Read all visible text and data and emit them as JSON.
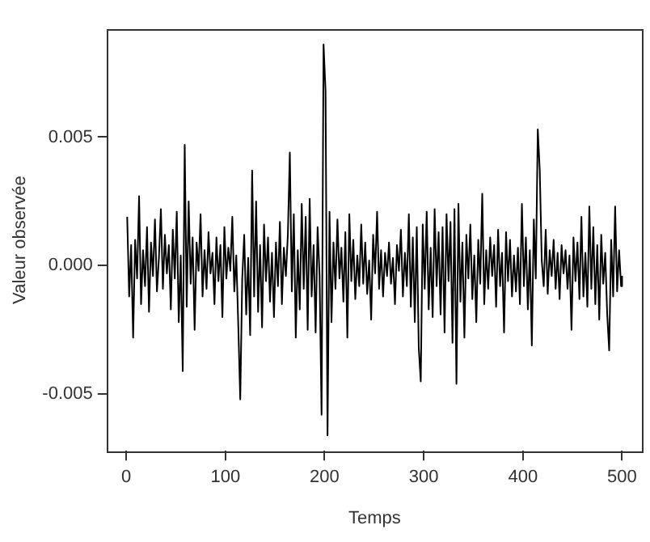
{
  "chart_data": {
    "type": "line",
    "xlabel": "Temps",
    "ylabel": "Valeur observée",
    "xlim": [
      -19,
      520
    ],
    "xticks": [
      0,
      100,
      200,
      300,
      400,
      500
    ],
    "ylim": [
      -0.0072,
      0.0092
    ],
    "yticks": [
      {
        "value": -0.005,
        "label": "-0.005"
      },
      {
        "value": 0,
        "label": "0.000"
      },
      {
        "value": 0.005,
        "label": "0.005"
      }
    ],
    "grid": false,
    "legend": false,
    "marker": "none",
    "line_style": "solid",
    "series": [
      {
        "color": "#000000",
        "x": [
          1,
          3,
          5,
          7,
          9,
          11,
          13,
          15,
          17,
          19,
          21,
          23,
          25,
          27,
          29,
          31,
          33,
          35,
          37,
          39,
          41,
          43,
          45,
          47,
          49,
          51,
          53,
          55,
          57,
          59,
          61,
          63,
          65,
          67,
          69,
          71,
          73,
          75,
          77,
          79,
          81,
          83,
          85,
          87,
          89,
          91,
          93,
          95,
          97,
          99,
          101,
          103,
          105,
          107,
          109,
          111,
          113,
          115,
          117,
          119,
          121,
          123,
          125,
          127,
          129,
          131,
          133,
          135,
          137,
          139,
          141,
          143,
          145,
          147,
          149,
          151,
          153,
          155,
          157,
          159,
          161,
          163,
          165,
          167,
          169,
          171,
          173,
          175,
          177,
          179,
          181,
          183,
          185,
          187,
          189,
          191,
          193,
          195,
          197,
          199,
          201,
          203,
          205,
          207,
          209,
          211,
          213,
          215,
          217,
          219,
          221,
          223,
          225,
          227,
          229,
          231,
          233,
          235,
          237,
          239,
          241,
          243,
          245,
          247,
          249,
          251,
          253,
          255,
          257,
          259,
          261,
          263,
          265,
          267,
          269,
          271,
          273,
          275,
          277,
          279,
          281,
          283,
          285,
          287,
          289,
          291,
          293,
          295,
          297,
          299,
          301,
          303,
          305,
          307,
          309,
          311,
          313,
          315,
          317,
          319,
          321,
          323,
          325,
          327,
          329,
          331,
          333,
          335,
          337,
          339,
          341,
          343,
          345,
          347,
          349,
          351,
          353,
          355,
          357,
          359,
          361,
          363,
          365,
          367,
          369,
          371,
          373,
          375,
          377,
          379,
          381,
          383,
          385,
          387,
          389,
          391,
          393,
          395,
          397,
          399,
          401,
          403,
          405,
          407,
          409,
          411,
          413,
          415,
          417,
          419,
          421,
          423,
          425,
          427,
          429,
          431,
          433,
          435,
          437,
          439,
          441,
          443,
          445,
          447,
          449,
          451,
          453,
          455,
          457,
          459,
          461,
          463,
          465,
          467,
          469,
          471,
          473,
          475,
          477,
          479,
          481,
          483,
          485,
          487,
          489,
          491,
          493,
          495,
          497,
          499,
          500
        ],
        "values": [
          0.0019,
          -0.0012,
          0.0008,
          -0.0028,
          0.001,
          -0.0005,
          0.0027,
          -0.0015,
          0.0006,
          -0.0008,
          0.0015,
          -0.0018,
          0.0009,
          -0.0004,
          0.0018,
          -0.001,
          0.0003,
          0.0022,
          -0.0009,
          0.0012,
          -0.0003,
          0.0008,
          -0.0017,
          0.0014,
          -0.0005,
          0.0021,
          -0.0022,
          0.0004,
          -0.0041,
          0.0047,
          -0.0016,
          0.0025,
          -0.0007,
          0.0011,
          -0.0025,
          0.0009,
          -0.0002,
          0.002,
          -0.0012,
          0.0006,
          -0.0009,
          0.0013,
          -0.0003,
          0.0005,
          -0.0015,
          0.0011,
          -0.0006,
          0.0008,
          -0.002,
          0.0015,
          -0.0005,
          0.0007,
          -0.0002,
          0.0019,
          -0.001,
          0.0004,
          -0.0023,
          -0.0052,
          -0.0005,
          0.0012,
          -0.0019,
          0.0003,
          -0.0027,
          0.0037,
          -0.0012,
          0.0025,
          -0.0018,
          0.0008,
          -0.0024,
          0.0016,
          -0.0006,
          0.0011,
          -0.0014,
          0.0005,
          -0.002,
          0.0009,
          -0.0008,
          0.0017,
          -0.0015,
          0.0007,
          -0.0004,
          0.0012,
          0.0044,
          -0.001,
          0.002,
          -0.0028,
          0.0006,
          -0.0017,
          0.0024,
          -0.0009,
          0.0019,
          -0.0025,
          0.0026,
          -0.0012,
          0.0008,
          -0.0026,
          0.0015,
          -0.0004,
          -0.0058,
          0.0086,
          0.0068,
          -0.0066,
          0.0021,
          -0.0022,
          0.0009,
          -0.0009,
          0.0018,
          -0.0005,
          0.0007,
          -0.0014,
          0.0013,
          -0.0028,
          0.002,
          -0.0006,
          0.001,
          -0.0013,
          0.0004,
          -0.0008,
          0.0016,
          -0.0007,
          0.0009,
          -0.0011,
          0.0002,
          -0.0021,
          0.0012,
          -0.0003,
          0.0021,
          -0.0009,
          0.0006,
          -0.0012,
          0.0005,
          -0.0004,
          0.0009,
          -0.0007,
          0.0003,
          -0.0015,
          0.0008,
          -0.0002,
          0.0014,
          -0.0012,
          0.0005,
          -0.0008,
          0.002,
          -0.0016,
          0.0011,
          -0.0022,
          0.0015,
          -0.0032,
          -0.0045,
          0.0016,
          -0.0009,
          0.0021,
          -0.0017,
          0.0007,
          -0.002,
          0.0022,
          -0.0008,
          0.0013,
          -0.0019,
          0.0015,
          -0.0026,
          0.002,
          -0.0006,
          0.0017,
          -0.003,
          0.0022,
          -0.0046,
          0.0024,
          -0.0014,
          0.0009,
          -0.0028,
          0.0012,
          -0.0005,
          0.0016,
          -0.0013,
          0.0004,
          -0.0022,
          0.001,
          -0.0007,
          0.0028,
          -0.0015,
          0.0006,
          -0.0009,
          0.0011,
          -0.0004,
          0.0008,
          -0.0016,
          0.0014,
          -0.0008,
          0.0005,
          -0.0026,
          0.0013,
          -0.0006,
          0.001,
          -0.0012,
          0.0004,
          -0.001,
          0.0007,
          -0.0015,
          0.0024,
          -0.0008,
          0.0011,
          -0.0017,
          0.0006,
          -0.0031,
          0.0018,
          -0.0005,
          0.0053,
          0.0037,
          0.0002,
          -0.0008,
          0.0014,
          -0.0011,
          0.0006,
          -0.0004,
          0.001,
          -0.0009,
          0.0005,
          -0.0013,
          0.0008,
          -0.0003,
          0.0006,
          -0.0009,
          0.0004,
          -0.0025,
          0.0011,
          -0.0006,
          0.0009,
          -0.0013,
          0.0019,
          -0.0012,
          0.0005,
          -0.0016,
          0.0023,
          -0.0009,
          0.0015,
          -0.0015,
          0.0008,
          -0.0021,
          0.0012,
          -0.0007,
          0.0005,
          -0.0019,
          -0.0033,
          0.001,
          -0.0012,
          0.0023,
          -0.001,
          0.0006,
          -0.0008,
          -0.0004
        ]
      }
    ]
  }
}
